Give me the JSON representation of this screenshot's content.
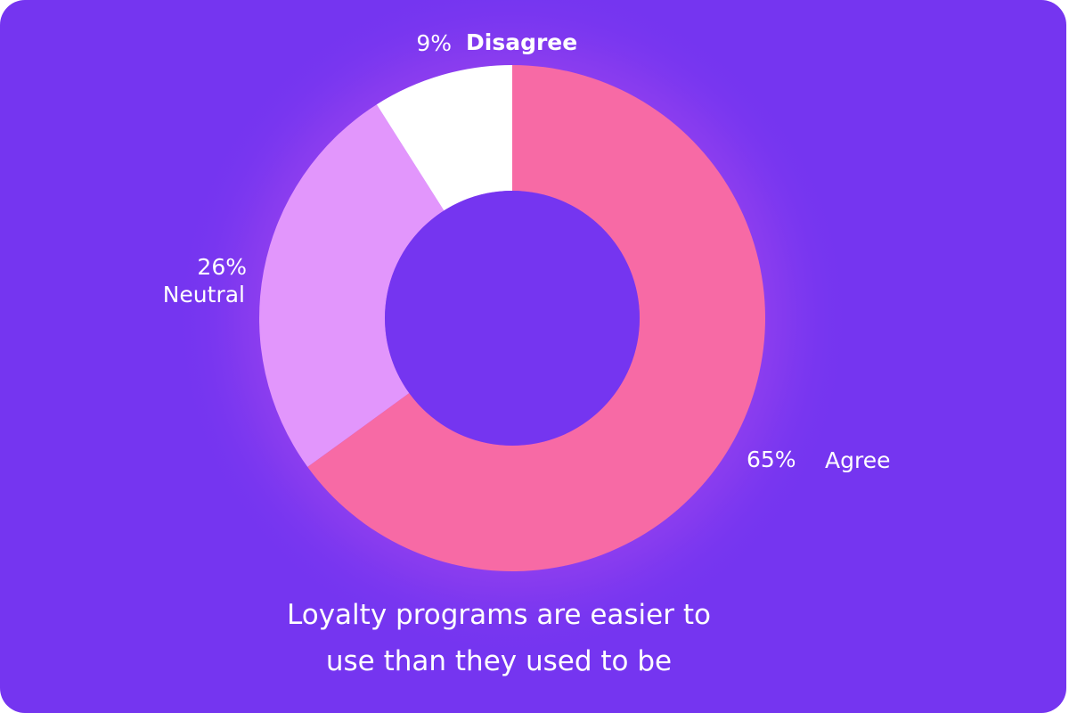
{
  "chart_data": {
    "type": "donut",
    "title": "Loyalty programs are easier to use than they used to be",
    "categories": [
      "Agree",
      "Neutral",
      "Disagree"
    ],
    "values": [
      65,
      26,
      9
    ],
    "value_labels": [
      "65%",
      "26%",
      "9%"
    ],
    "colors": [
      "#f76aa5",
      "#e296fc",
      "#ffffff"
    ]
  }
}
